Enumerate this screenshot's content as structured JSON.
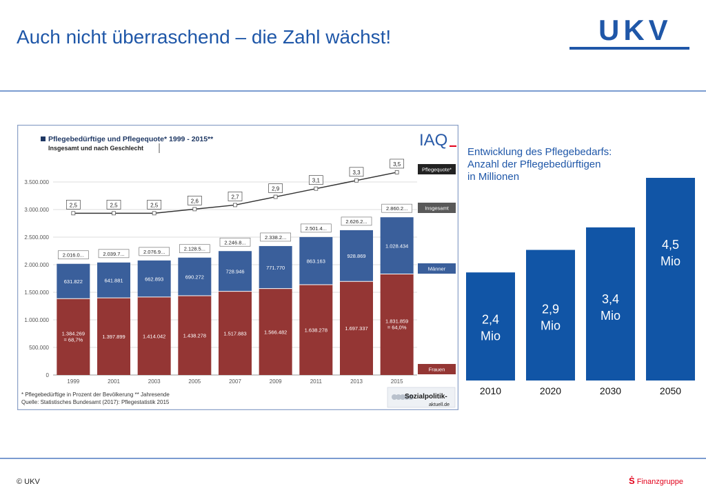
{
  "title": "Auch nicht überraschend – die Zahl wächst!",
  "logo": {
    "text": "UKV",
    "color": "#1f57a8"
  },
  "footer": {
    "copyright": "© UKV",
    "sparkasse_symbol": "Ṡ",
    "sparkasse_text": "Finanzgruppe"
  },
  "colors": {
    "accent": "#1f57a8",
    "women": "#943634",
    "men": "#3a5f9b",
    "total_label_bg": "#595959",
    "right_bars": "#1155a6"
  },
  "chart_data": [
    {
      "type": "bar",
      "title": "Pflegebedürftige und Pflegequote* 1999 - 2015**",
      "subtitle": "Insgesamt und nach Geschlecht",
      "logo": "IAQ",
      "categories": [
        "1999",
        "2001",
        "2003",
        "2005",
        "2007",
        "2009",
        "2011",
        "2013",
        "2015"
      ],
      "ylim": [
        0,
        3500000
      ],
      "yticks": [
        0,
        500000,
        1000000,
        1500000,
        2000000,
        2500000,
        3000000,
        3500000
      ],
      "ytick_labels": [
        "0",
        "500.000",
        "1.000.000",
        "1.500.000",
        "2.000.000",
        "2.500.000",
        "3.000.000",
        "3.500.000"
      ],
      "series": [
        {
          "name": "Frauen",
          "values": [
            1384269,
            1397899,
            1414042,
            1438278,
            1517883,
            1566482,
            1638278,
            1697337,
            1831859
          ],
          "labels": [
            "1.384.269",
            "1.397.899",
            "1.414.042",
            "1.438.278",
            "1.517.883",
            "1.566.482",
            "1.638.278",
            "1.697.337",
            "1.831.859"
          ],
          "sublabels": [
            "= 68,7%",
            "",
            "",
            "",
            "",
            "",
            "",
            "",
            "= 64,0%"
          ]
        },
        {
          "name": "Männer",
          "values": [
            631822,
            641881,
            662893,
            690272,
            728946,
            771770,
            863163,
            928869,
            1028434
          ],
          "labels": [
            "631.822",
            "641.881",
            "662.893",
            "690.272",
            "728.946",
            "771.770",
            "863.163",
            "928.869",
            "1.028.434"
          ]
        },
        {
          "name": "Insgesamt",
          "values": [
            2016091,
            2039780,
            2076935,
            2128550,
            2246829,
            2338252,
            2501441,
            2626206,
            2860293
          ],
          "labels": [
            "2.016.0...",
            "2.039.7...",
            "2.076.9...",
            "2.128.5...",
            "2.246.8...",
            "2.338.2...",
            "2.501.4...",
            "2.626.2...",
            "2.860.2..."
          ]
        },
        {
          "name": "Pflegequote*",
          "values": [
            2.5,
            2.5,
            2.5,
            2.6,
            2.7,
            2.9,
            3.1,
            3.3,
            3.5
          ],
          "labels": [
            "2,5",
            "2,5",
            "2,5",
            "2,6",
            "2,7",
            "2,9",
            "3,1",
            "3,3",
            "3,5"
          ]
        }
      ],
      "footnote1": "* Pflegebedürftige in Prozent der Bevölkerung  ** Jahresende",
      "footnote2": "Quelle: Statistisches Bundesamt (2017): Pflegestatistik 2015",
      "source_logo": {
        "line1": "Sozialpolitik-",
        "line2": "aktuell.de"
      }
    },
    {
      "type": "bar",
      "title_lines": [
        "Entwicklung des Pflegebedarfs:",
        "Anzahl der Pflegebedürftigen",
        "in Millionen"
      ],
      "categories": [
        "2010",
        "2020",
        "2030",
        "2050"
      ],
      "values": [
        2.4,
        2.9,
        3.4,
        4.5
      ],
      "labels": [
        "2,4",
        "2,9",
        "3,4",
        "4,5"
      ],
      "unit": "Mio",
      "ylim": [
        0,
        4.5
      ]
    }
  ]
}
